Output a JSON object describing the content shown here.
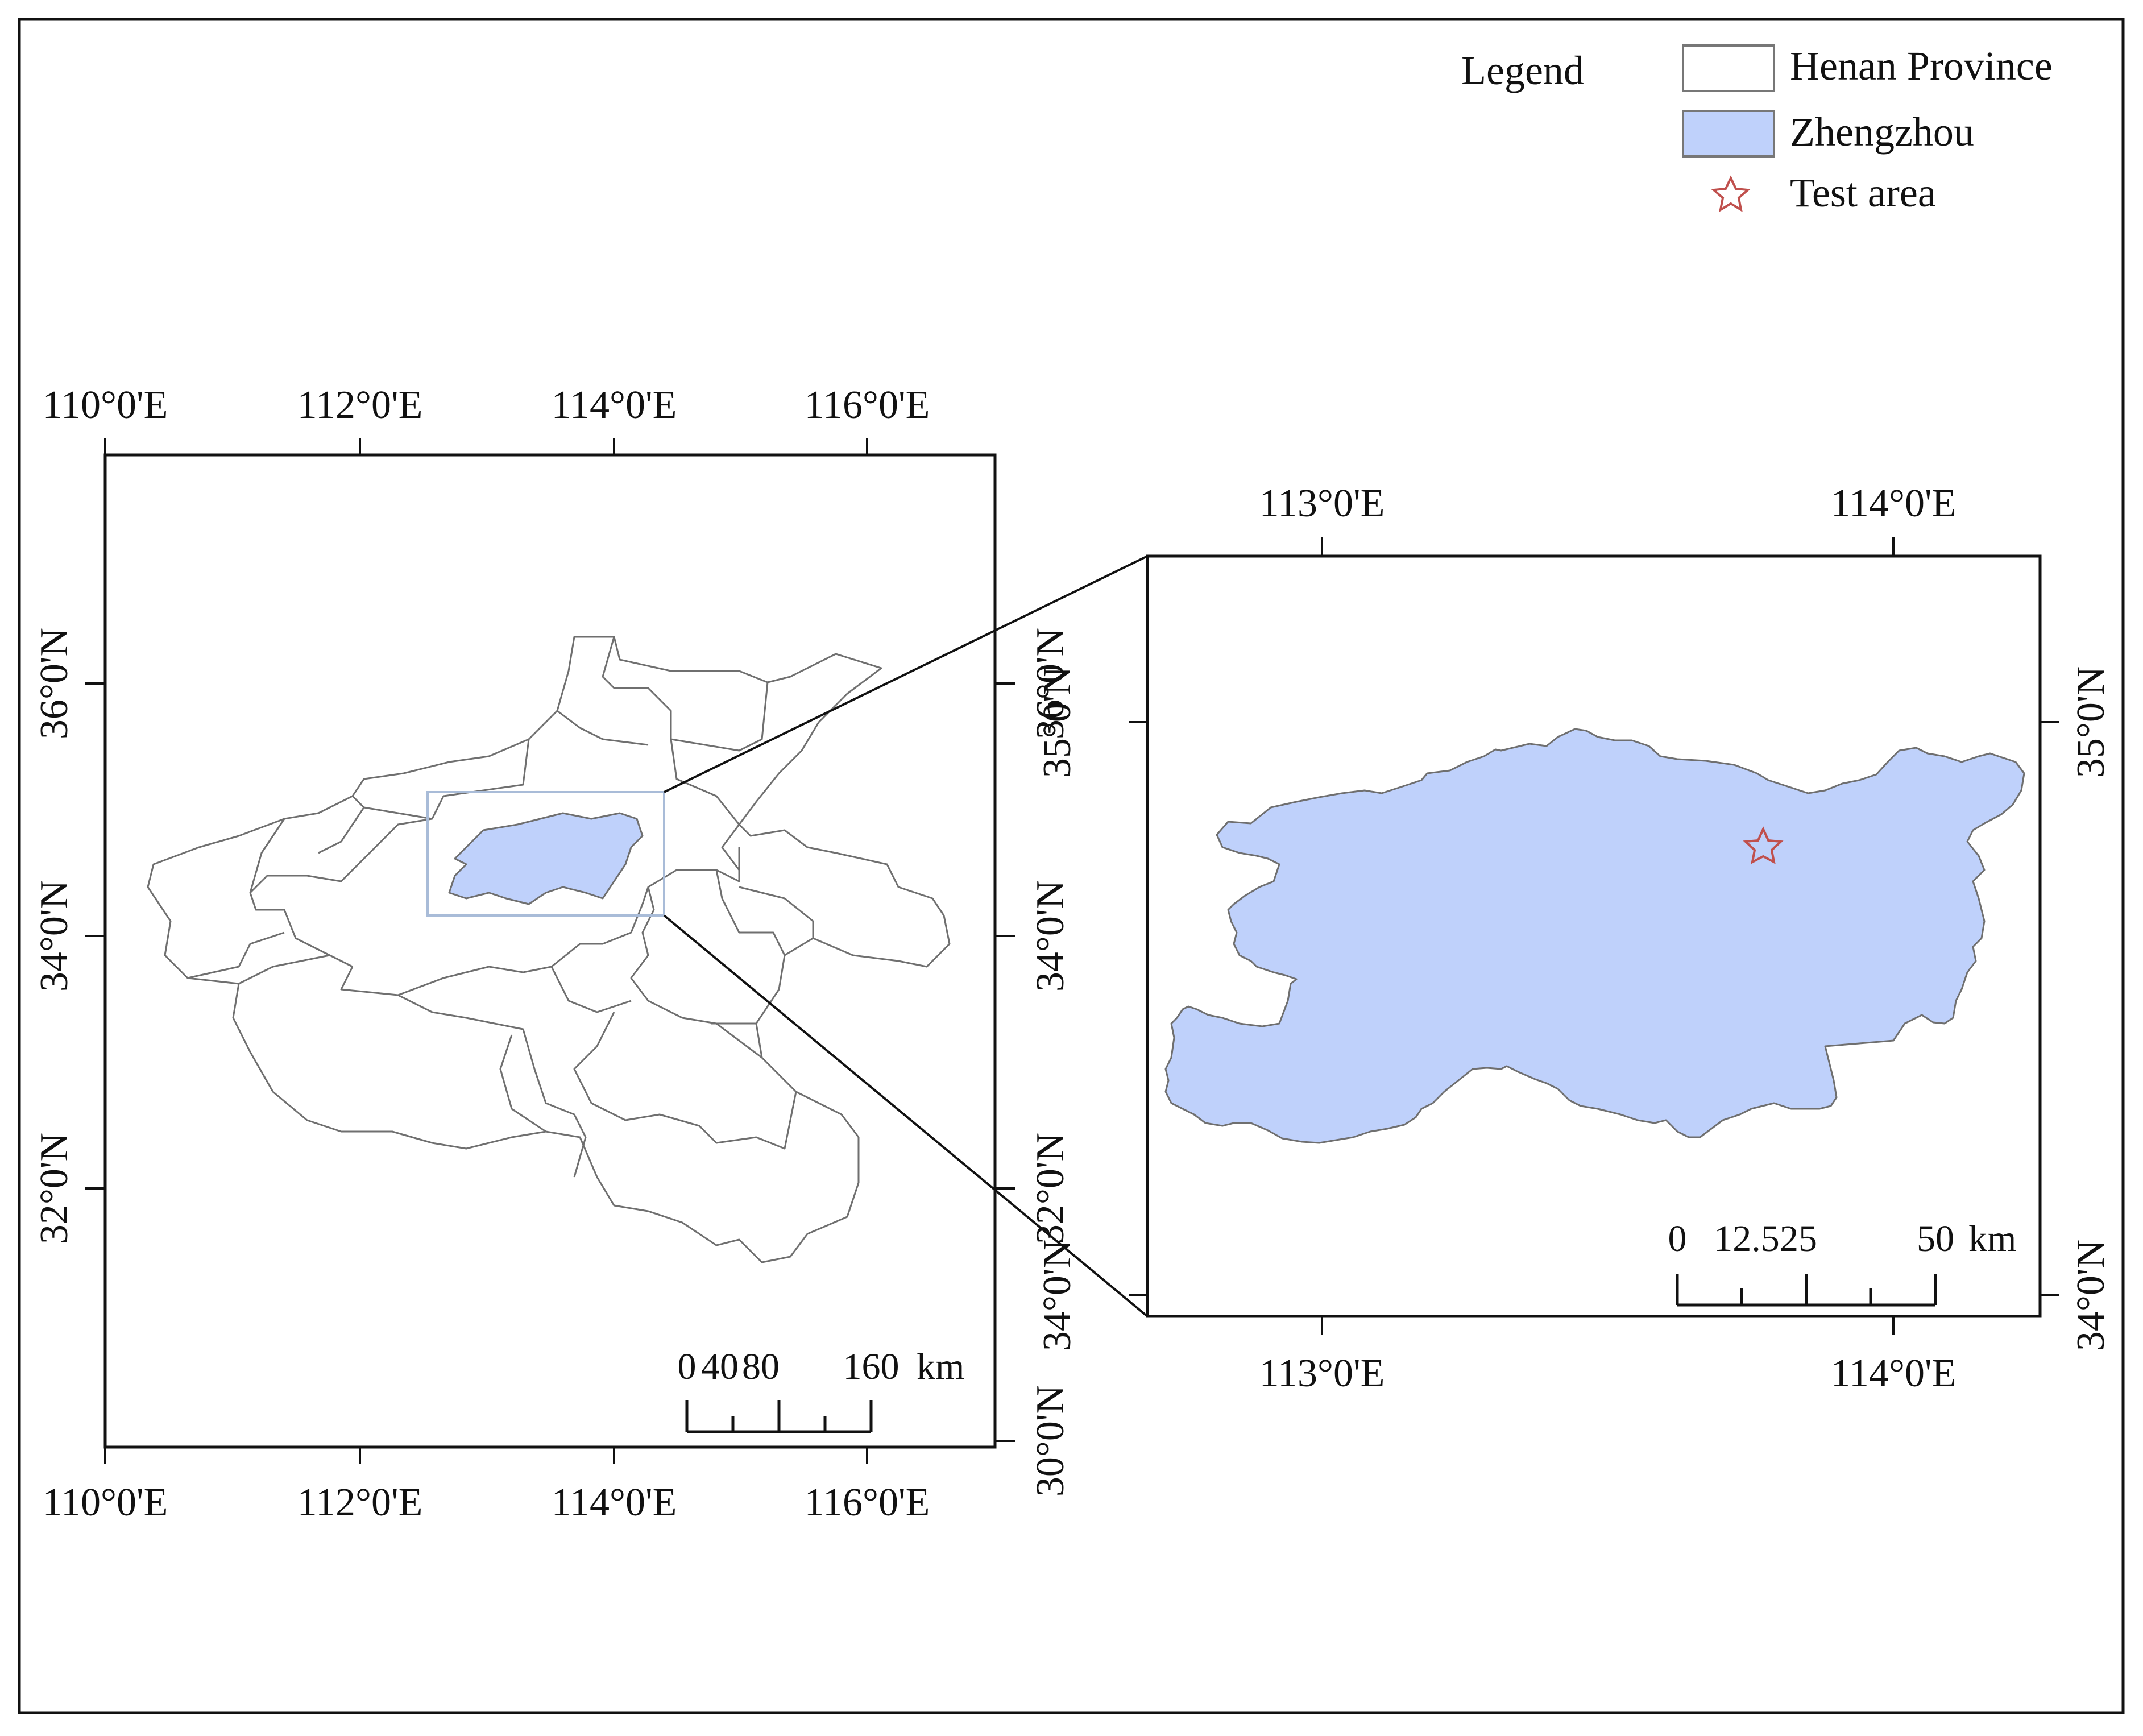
{
  "legend": {
    "title": "Legend",
    "items": [
      {
        "label": "Henan Province",
        "swatch": "outline-box",
        "fill": "#ffffff",
        "stroke": "#777777"
      },
      {
        "label": "Zhengzhou",
        "swatch": "filled-box",
        "fill": "#bfd1fb",
        "stroke": "#777777"
      },
      {
        "label": "Test area",
        "swatch": "star-icon",
        "stroke": "#c0504d"
      }
    ]
  },
  "overview_map": {
    "top_lon_labels": [
      "110°0'E",
      "112°0'E",
      "114°0'E",
      "116°0'E"
    ],
    "bottom_lon_labels": [
      "110°0'E",
      "112°0'E",
      "114°0'E",
      "116°0'E"
    ],
    "left_lat_labels": [
      "36°0'N",
      "34°0'N",
      "32°0'N"
    ],
    "right_lat_labels": [
      "36°0'N",
      "34°0'N",
      "32°0'N",
      "30°0'N"
    ],
    "scale_bar": {
      "ticks": [
        "0",
        "40",
        "80",
        "160"
      ],
      "unit": "km"
    }
  },
  "detail_map": {
    "top_lon_labels": [
      "113°0'E",
      "114°0'E"
    ],
    "bottom_lon_labels": [
      "113°0'E",
      "114°0'E"
    ],
    "left_lat_labels": [
      "35°0'N",
      "34°0'N"
    ],
    "right_lat_labels": [
      "35°0'N",
      "34°0'N"
    ],
    "scale_bar": {
      "ticks": [
        "0",
        "12.5",
        "25",
        "50"
      ],
      "unit": "km"
    }
  },
  "colors": {
    "zhengzhou_fill": "#bfd1fb",
    "boundary_stroke": "#6f6f6f",
    "star_stroke": "#c0504d",
    "extent_box_stroke": "#a9bcd8"
  }
}
